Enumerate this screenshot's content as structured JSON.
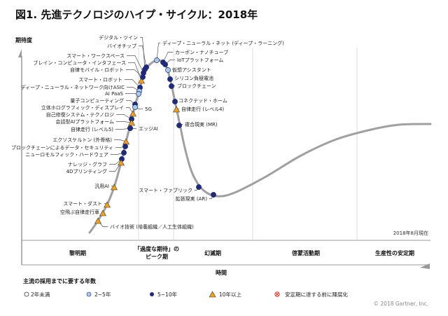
{
  "title": "図1. 先進テクノロジのハイプ・サイクル：2018年",
  "y_axis_label": "期待度",
  "x_axis_label": "時間",
  "as_of": "2018年8月現在",
  "copyright": "© 2018 Gartner, Inc.",
  "phases": [
    "黎明期",
    "「過度な期待」の",
    "ピーク期",
    "幻滅期",
    "啓蒙活動期",
    "生産性の安定期"
  ],
  "legend": {
    "title": "主流の採用までに要する年数",
    "items": [
      {
        "label": "2年未満",
        "marker": "circle-white"
      },
      {
        "label": "2~5年",
        "marker": "circle-lightblue"
      },
      {
        "label": "5~10年",
        "marker": "circle-darkblue"
      },
      {
        "label": "10年以上",
        "marker": "triangle-orange"
      },
      {
        "label": "安定期に達する前に陳腐化",
        "marker": "x-circle-red"
      }
    ]
  },
  "colors": {
    "dark_blue": "#1f2a7a",
    "light_blue": "#a9cbe8",
    "orange": "#f0a21e",
    "curve": "#a0a0a0",
    "obsolete": "#e0302a"
  },
  "technologies": [
    {
      "label": "デジタル・ツイン",
      "years": "5~10年"
    },
    {
      "label": "バイオチップ",
      "years": "5~10年"
    },
    {
      "label": "スマート・ワークスペース",
      "years": "5~10年"
    },
    {
      "label": "ブレイン・コンピュータ・インタフェース",
      "years": "10年以上"
    },
    {
      "label": "自律モバイル・ロボット",
      "years": "5~10年"
    },
    {
      "label": "スマート・ロボット",
      "years": "5~10年"
    },
    {
      "label": "ディープ・ニューラル・ネットワーク向けASIC",
      "years": "2~5年"
    },
    {
      "label": "AI PaaS",
      "years": "2~5年"
    },
    {
      "label": "量子コンピューティング",
      "years": "5~10年"
    },
    {
      "label": "立体ホログラフィック・ディスプレイ",
      "years": "10年以上"
    },
    {
      "label": "5G",
      "years": "2~5年"
    },
    {
      "label": "自己修復システム・テクノロジ",
      "years": "5~10年"
    },
    {
      "label": "会話型AIプラットフォーム",
      "years": "10年以上"
    },
    {
      "label": "自律走行 (レベル5)",
      "years": "5~10年"
    },
    {
      "label": "エッジAI",
      "years": "5~10年"
    },
    {
      "label": "エクソスケルトン (外骨格)",
      "years": "10年以上"
    },
    {
      "label": "ブロックチェーンによるデータ・セキュリティ",
      "years": "5~10年"
    },
    {
      "label": "ニューロモルフィック・ハードウェア",
      "years": "5~10年"
    },
    {
      "label": "ナレッジ・グラフ",
      "years": "5~10年"
    },
    {
      "label": "4Dプリンティング",
      "years": "10年以上"
    },
    {
      "label": "汎用AI",
      "years": "10年以上"
    },
    {
      "label": "スマート・ダスト",
      "years": "10年以上"
    },
    {
      "label": "空飛ぶ自律走行車",
      "years": "10年以上"
    },
    {
      "label": "バイオ技術 (培養組織／人工生体組織)",
      "years": "10年以上"
    },
    {
      "label": "ディープ・ニューラル・ネット (ディープ・ラーニング)",
      "years": "2~5年"
    },
    {
      "label": "カーボン・ナノチューブ",
      "years": "5~10年"
    },
    {
      "label": "IoTプラットフォーム",
      "years": "5~10年"
    },
    {
      "label": "仮想アシスタント",
      "years": "2~5年"
    },
    {
      "label": "シリコン負極電池",
      "years": "5~10年"
    },
    {
      "label": "ブロックチェーン",
      "years": "5~10年"
    },
    {
      "label": "コネクテッド・ホーム",
      "years": "5~10年"
    },
    {
      "label": "自律走行 (レベル4)",
      "years": "10年以上"
    },
    {
      "label": "複合現実 (MR)",
      "years": "5~10年"
    },
    {
      "label": "スマート・ファブリック",
      "years": "5~10年"
    },
    {
      "label": "拡張現実 (AR)",
      "years": "5~10年"
    }
  ]
}
